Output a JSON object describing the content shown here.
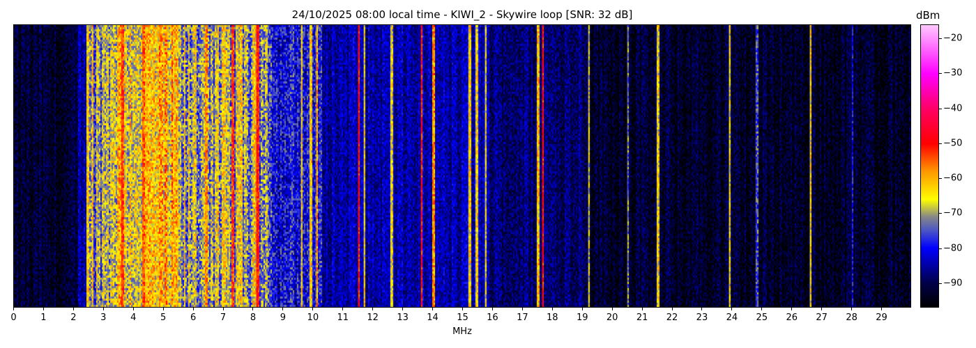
{
  "chart_data": {
    "type": "heatmap",
    "title": "24/10/2025 08:00 local time - KIWI_2 - Skywire loop [SNR: 32 dB]",
    "xlabel": "MHz",
    "ylabel": "",
    "xlim": [
      0,
      30
    ],
    "xticks": [
      "0",
      "1",
      "2",
      "3",
      "4",
      "5",
      "6",
      "7",
      "8",
      "9",
      "10",
      "11",
      "12",
      "13",
      "14",
      "15",
      "16",
      "17",
      "18",
      "19",
      "20",
      "21",
      "22",
      "23",
      "24",
      "25",
      "26",
      "27",
      "28",
      "29"
    ],
    "colorbar": {
      "label": "dBm",
      "range": [
        -97,
        -16
      ],
      "ticks": [
        "−20",
        "−30",
        "−40",
        "−50",
        "−60",
        "−70",
        "−80",
        "−90"
      ],
      "tick_values": [
        -20,
        -30,
        -40,
        -50,
        -60,
        -70,
        -80,
        -90
      ],
      "colormap": [
        {
          "v": -97,
          "c": "#000000"
        },
        {
          "v": -90,
          "c": "#00004a"
        },
        {
          "v": -80,
          "c": "#0000ff"
        },
        {
          "v": -75,
          "c": "#4a55c8"
        },
        {
          "v": -71,
          "c": "#888888"
        },
        {
          "v": -66,
          "c": "#ffff00"
        },
        {
          "v": -58,
          "c": "#ff9900"
        },
        {
          "v": -50,
          "c": "#ff0000"
        },
        {
          "v": -40,
          "c": "#ff0066"
        },
        {
          "v": -30,
          "c": "#ff00ff"
        },
        {
          "v": -16,
          "c": "#ffc8ff"
        }
      ]
    },
    "bands": [
      {
        "from": 0.0,
        "to": 2.1,
        "level": -93
      },
      {
        "from": 2.1,
        "to": 2.4,
        "level": -85
      },
      {
        "from": 2.4,
        "to": 3.2,
        "level": -70
      },
      {
        "from": 3.2,
        "to": 5.5,
        "level": -64
      },
      {
        "from": 5.5,
        "to": 8.6,
        "level": -70
      },
      {
        "from": 8.6,
        "to": 10.3,
        "level": -80
      },
      {
        "from": 10.3,
        "to": 15.9,
        "level": -85
      },
      {
        "from": 15.9,
        "to": 19.2,
        "level": -88
      },
      {
        "from": 19.2,
        "to": 30.0,
        "level": -93
      }
    ],
    "lines": [
      {
        "f": 2.45,
        "level": -64
      },
      {
        "f": 2.6,
        "level": -62
      },
      {
        "f": 3.6,
        "level": -52
      },
      {
        "f": 4.3,
        "level": -55
      },
      {
        "f": 6.4,
        "level": -58
      },
      {
        "f": 7.3,
        "level": -52
      },
      {
        "f": 8.1,
        "level": -50
      },
      {
        "f": 8.15,
        "level": -50
      },
      {
        "f": 9.6,
        "level": -64
      },
      {
        "f": 9.9,
        "level": -63
      },
      {
        "f": 10.1,
        "level": -60
      },
      {
        "f": 11.5,
        "level": -50
      },
      {
        "f": 11.7,
        "level": -64
      },
      {
        "f": 12.6,
        "level": -66
      },
      {
        "f": 13.6,
        "level": -50
      },
      {
        "f": 14.0,
        "level": -58
      },
      {
        "f": 15.2,
        "level": -64
      },
      {
        "f": 15.45,
        "level": -64
      },
      {
        "f": 15.75,
        "level": -66
      },
      {
        "f": 17.5,
        "level": -62
      },
      {
        "f": 17.65,
        "level": -50
      },
      {
        "f": 19.2,
        "level": -68
      },
      {
        "f": 20.5,
        "level": -72
      },
      {
        "f": 21.5,
        "level": -65
      },
      {
        "f": 23.9,
        "level": -66
      },
      {
        "f": 24.8,
        "level": -76
      },
      {
        "f": 26.6,
        "level": -64
      },
      {
        "f": 28.0,
        "level": -80
      }
    ]
  }
}
